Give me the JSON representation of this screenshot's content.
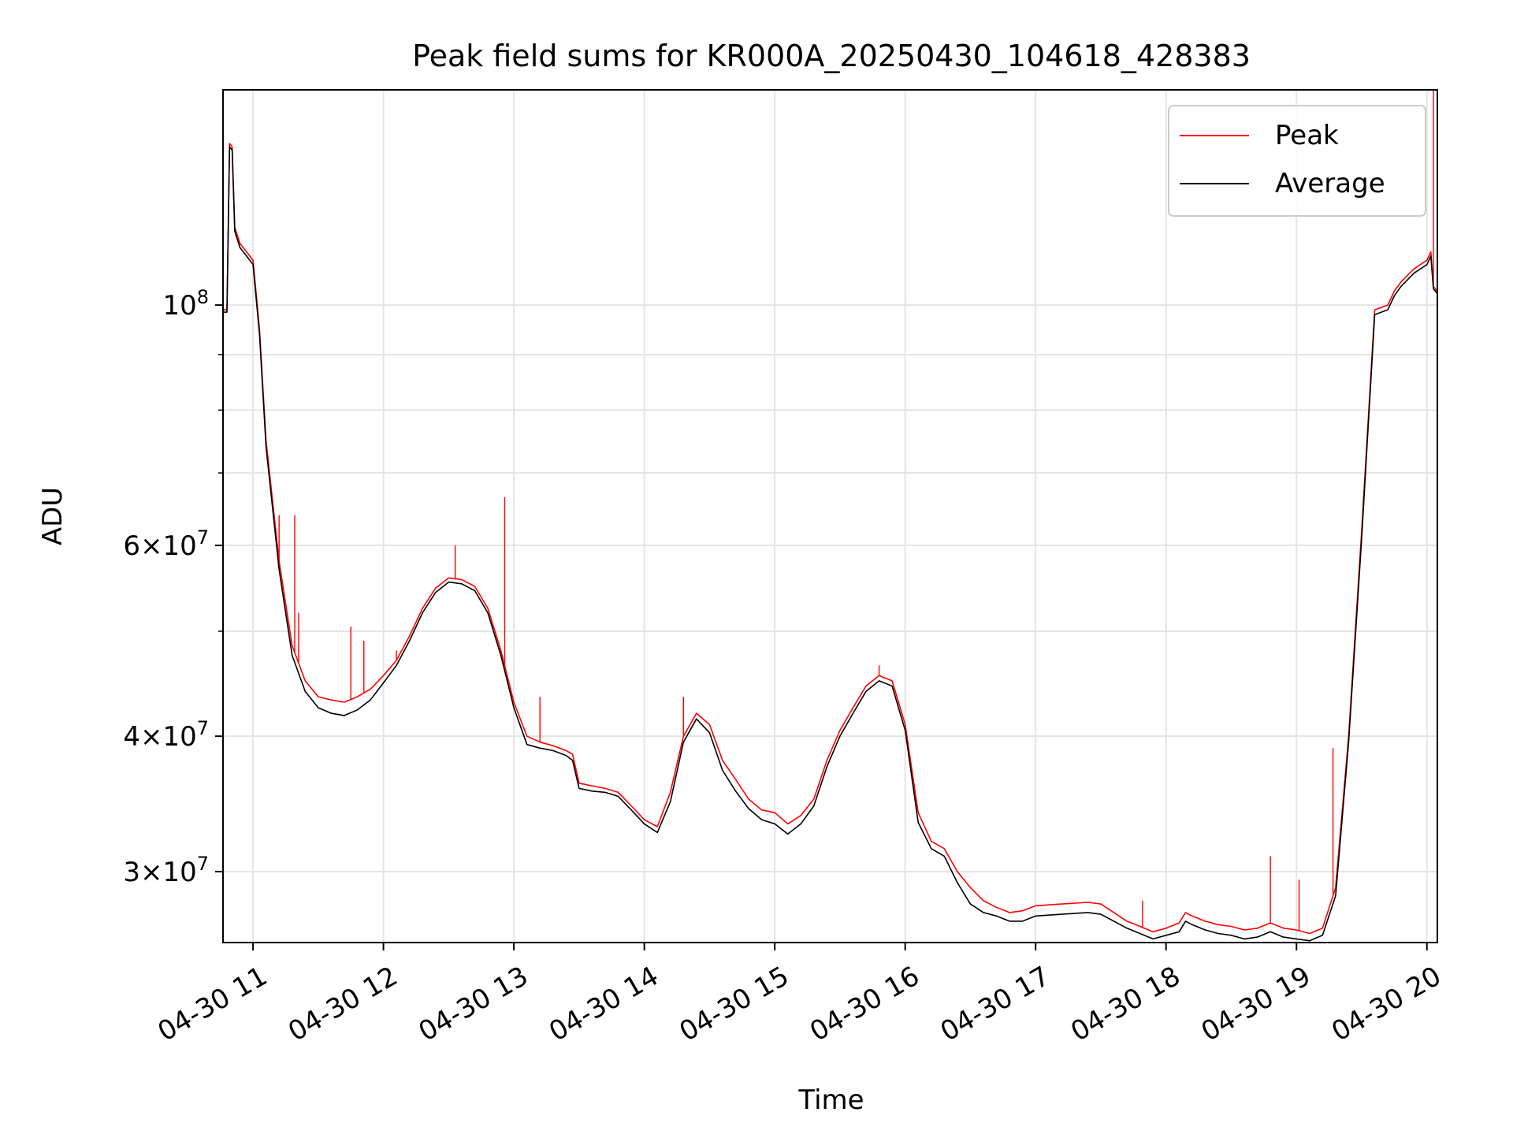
{
  "chart_data": {
    "type": "line",
    "title": "Peak field sums for KR000A_20250430_104618_428383",
    "xlabel": "Time",
    "ylabel": "ADU",
    "yscale": "log",
    "grid": true,
    "legend_position": "top-right",
    "x_unit": "hours on 2025-04-30",
    "xlim": [
      10.77,
      20.08
    ],
    "ylim": [
      25800000,
      158000000
    ],
    "x_ticks": [
      {
        "value": 11,
        "label": "04-30 11"
      },
      {
        "value": 12,
        "label": "04-30 12"
      },
      {
        "value": 13,
        "label": "04-30 13"
      },
      {
        "value": 14,
        "label": "04-30 14"
      },
      {
        "value": 15,
        "label": "04-30 15"
      },
      {
        "value": 16,
        "label": "04-30 16"
      },
      {
        "value": 17,
        "label": "04-30 17"
      },
      {
        "value": 18,
        "label": "04-30 18"
      },
      {
        "value": 19,
        "label": "04-30 19"
      },
      {
        "value": 20,
        "label": "04-30 20"
      }
    ],
    "y_ticks": [
      {
        "value": 30000000,
        "mant": "3",
        "exp": "7"
      },
      {
        "value": 40000000,
        "mant": "4",
        "exp": "7"
      },
      {
        "value": 60000000,
        "mant": "6",
        "exp": "7"
      },
      {
        "value": 100000000,
        "mant": "",
        "exp": "8"
      }
    ],
    "y_minor_ticks": [
      50000000,
      70000000,
      80000000,
      90000000
    ],
    "series": [
      {
        "name": "Peak",
        "color": "#ff0000",
        "x": [
          10.77,
          10.8,
          10.82,
          10.84,
          10.86,
          10.9,
          10.95,
          11.0,
          11.05,
          11.1,
          11.2,
          11.3,
          11.4,
          11.5,
          11.6,
          11.7,
          11.8,
          11.9,
          12.0,
          12.1,
          12.2,
          12.3,
          12.4,
          12.5,
          12.6,
          12.7,
          12.8,
          12.9,
          13.0,
          13.1,
          13.2,
          13.3,
          13.4,
          13.45,
          13.5,
          13.6,
          13.7,
          13.8,
          13.9,
          14.0,
          14.1,
          14.2,
          14.3,
          14.4,
          14.5,
          14.6,
          14.7,
          14.8,
          14.9,
          15.0,
          15.1,
          15.2,
          15.3,
          15.4,
          15.5,
          15.6,
          15.7,
          15.8,
          15.9,
          16.0,
          16.1,
          16.2,
          16.3,
          16.4,
          16.5,
          16.6,
          16.7,
          16.8,
          16.9,
          17.0,
          17.2,
          17.4,
          17.5,
          17.6,
          17.7,
          17.8,
          17.9,
          18.0,
          18.1,
          18.15,
          18.2,
          18.3,
          18.4,
          18.5,
          18.6,
          18.7,
          18.8,
          18.9,
          19.0,
          19.1,
          19.2,
          19.3,
          19.4,
          19.5,
          19.6,
          19.7,
          19.75,
          19.8,
          19.9,
          20.0,
          20.03,
          20.05,
          20.08
        ],
        "y": [
          99000000,
          99000000,
          141000000,
          140000000,
          118000000,
          114000000,
          112000000,
          110000000,
          95000000,
          75000000,
          58000000,
          48500000,
          45000000,
          43500000,
          43200000,
          43000000,
          43500000,
          44200000,
          45500000,
          47000000,
          49500000,
          52500000,
          54800000,
          56000000,
          55800000,
          55000000,
          52500000,
          48000000,
          43000000,
          40000000,
          39500000,
          39200000,
          38800000,
          38500000,
          36200000,
          36000000,
          35800000,
          35500000,
          34500000,
          33500000,
          33000000,
          35500000,
          40000000,
          42000000,
          41000000,
          38000000,
          36500000,
          35000000,
          34200000,
          34000000,
          33200000,
          33800000,
          35000000,
          38000000,
          40500000,
          42500000,
          44500000,
          45500000,
          45000000,
          41000000,
          34000000,
          32000000,
          31500000,
          30000000,
          29000000,
          28200000,
          27800000,
          27500000,
          27600000,
          27900000,
          28000000,
          28100000,
          28000000,
          27500000,
          27000000,
          26700000,
          26400000,
          26600000,
          26900000,
          27500000,
          27300000,
          27000000,
          26800000,
          26700000,
          26500000,
          26600000,
          26900000,
          26600000,
          26500000,
          26300000,
          26600000,
          29000000,
          40000000,
          62000000,
          99000000,
          100000000,
          103000000,
          105000000,
          108000000,
          110000000,
          112000000,
          104000000,
          103000000
        ],
        "spikes": [
          {
            "x": 11.2,
            "y": 64000000
          },
          {
            "x": 11.32,
            "y": 64000000
          },
          {
            "x": 11.35,
            "y": 52000000
          },
          {
            "x": 11.75,
            "y": 50500000
          },
          {
            "x": 11.85,
            "y": 49000000
          },
          {
            "x": 12.1,
            "y": 48000000
          },
          {
            "x": 12.55,
            "y": 60000000
          },
          {
            "x": 12.93,
            "y": 66500000
          },
          {
            "x": 13.2,
            "y": 43500000
          },
          {
            "x": 14.3,
            "y": 43500000
          },
          {
            "x": 15.8,
            "y": 46500000
          },
          {
            "x": 17.82,
            "y": 28200000
          },
          {
            "x": 18.8,
            "y": 31000000
          },
          {
            "x": 19.02,
            "y": 29500000
          },
          {
            "x": 19.28,
            "y": 39000000
          },
          {
            "x": 20.05,
            "y": 158000000
          }
        ]
      },
      {
        "name": "Average",
        "color": "#000000",
        "x": [
          10.77,
          10.8,
          10.82,
          10.84,
          10.86,
          10.9,
          10.95,
          11.0,
          11.05,
          11.1,
          11.2,
          11.3,
          11.4,
          11.5,
          11.6,
          11.7,
          11.8,
          11.9,
          12.0,
          12.1,
          12.2,
          12.3,
          12.4,
          12.5,
          12.6,
          12.7,
          12.8,
          12.9,
          13.0,
          13.1,
          13.2,
          13.3,
          13.4,
          13.45,
          13.5,
          13.6,
          13.7,
          13.8,
          13.9,
          14.0,
          14.1,
          14.2,
          14.3,
          14.4,
          14.5,
          14.6,
          14.7,
          14.8,
          14.9,
          15.0,
          15.1,
          15.2,
          15.3,
          15.4,
          15.5,
          15.6,
          15.7,
          15.8,
          15.9,
          16.0,
          16.1,
          16.2,
          16.3,
          16.4,
          16.5,
          16.6,
          16.7,
          16.8,
          16.9,
          17.0,
          17.2,
          17.4,
          17.5,
          17.6,
          17.7,
          17.8,
          17.9,
          18.0,
          18.1,
          18.15,
          18.2,
          18.3,
          18.4,
          18.5,
          18.6,
          18.7,
          18.8,
          18.9,
          19.0,
          19.1,
          19.2,
          19.3,
          19.4,
          19.5,
          19.6,
          19.7,
          19.75,
          19.8,
          19.9,
          20.0,
          20.03,
          20.05,
          20.08
        ],
        "y": [
          98500000,
          98500000,
          140000000,
          139000000,
          117000000,
          113000000,
          111000000,
          109000000,
          94000000,
          74000000,
          57000000,
          47500000,
          44000000,
          42500000,
          42000000,
          41800000,
          42300000,
          43200000,
          44800000,
          46500000,
          49000000,
          52000000,
          54300000,
          55500000,
          55300000,
          54500000,
          52000000,
          47500000,
          42500000,
          39300000,
          39000000,
          38800000,
          38400000,
          38000000,
          35800000,
          35600000,
          35500000,
          35200000,
          34200000,
          33200000,
          32600000,
          34800000,
          39500000,
          41500000,
          40300000,
          37200000,
          35600000,
          34300000,
          33500000,
          33200000,
          32500000,
          33200000,
          34500000,
          37500000,
          40000000,
          42000000,
          44000000,
          45000000,
          44500000,
          40500000,
          33300000,
          31500000,
          31000000,
          29300000,
          28000000,
          27500000,
          27300000,
          27000000,
          27000000,
          27300000,
          27400000,
          27500000,
          27400000,
          27000000,
          26600000,
          26300000,
          26000000,
          26200000,
          26400000,
          27000000,
          26800000,
          26500000,
          26300000,
          26200000,
          26000000,
          26100000,
          26400000,
          26100000,
          26000000,
          25900000,
          26200000,
          28500000,
          39500000,
          61000000,
          98000000,
          99000000,
          102000000,
          104000000,
          107000000,
          109000000,
          111000000,
          103500000,
          102500000
        ]
      }
    ]
  }
}
